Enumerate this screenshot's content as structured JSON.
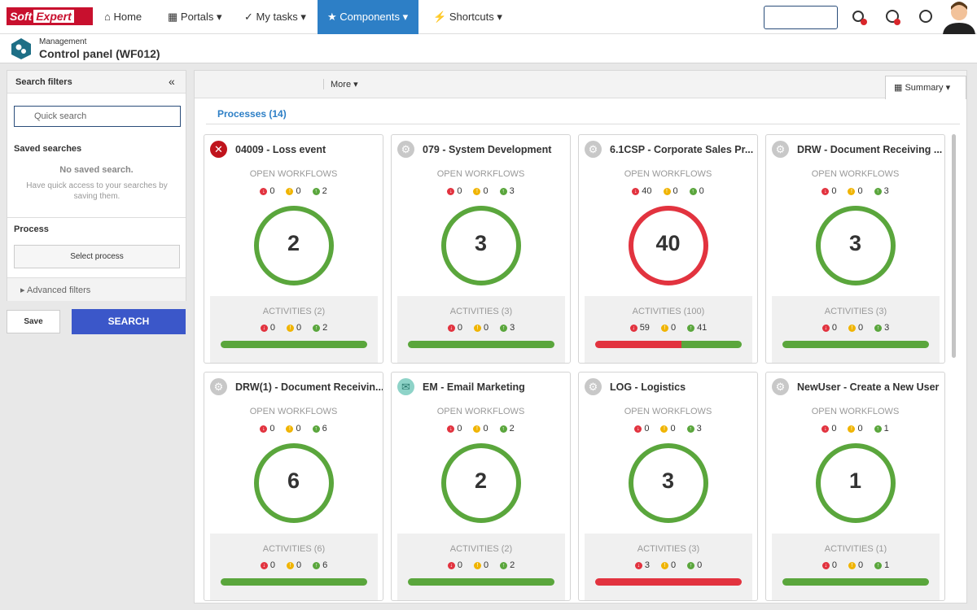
{
  "nav": {
    "logo_a": "Soft",
    "logo_b": "Expert",
    "items": [
      "Home",
      "Portals",
      "My tasks",
      "Components",
      "Shortcuts"
    ]
  },
  "header": {
    "breadcrumb": "Management",
    "title": "Control panel (WF012)"
  },
  "filters": {
    "title": "Search filters",
    "quick_search": "Quick search",
    "saved_searches": "Saved searches",
    "no_saved": "No saved search.",
    "no_saved_hint": "Have quick access to your searches by saving them.",
    "process": "Process",
    "select_process": "Select process",
    "advanced": "Advanced filters",
    "save": "Save",
    "search": "SEARCH"
  },
  "toolbar": {
    "more": "More",
    "summary": "Summary"
  },
  "processes": {
    "title": "Processes (14)",
    "open_workflows_label": "OPEN WORKFLOWS",
    "cards": [
      {
        "title": "04009 - Loss event",
        "icon": "error",
        "total": "2",
        "workflows": [
          0,
          0,
          2
        ],
        "activities_label": "ACTIVITIES (2)",
        "activities": [
          0,
          0,
          2
        ]
      },
      {
        "title": "079 - System Development",
        "icon": "gear",
        "total": "3",
        "workflows": [
          0,
          0,
          3
        ],
        "activities_label": "ACTIVITIES (3)",
        "activities": [
          0,
          0,
          3
        ]
      },
      {
        "title": "6.1CSP - Corporate Sales Pr...",
        "icon": "gear",
        "total": "40",
        "workflows": [
          40,
          0,
          0
        ],
        "activities_label": "ACTIVITIES (100)",
        "activities": [
          59,
          0,
          41
        ]
      },
      {
        "title": "DRW - Document Receiving ...",
        "icon": "gear",
        "total": "3",
        "workflows": [
          0,
          0,
          3
        ],
        "activities_label": "ACTIVITIES (3)",
        "activities": [
          0,
          0,
          3
        ]
      },
      {
        "title": "DRW(1) - Document Receivin...",
        "icon": "gear",
        "total": "6",
        "workflows": [
          0,
          0,
          6
        ],
        "activities_label": "ACTIVITIES (6)",
        "activities": [
          0,
          0,
          6
        ]
      },
      {
        "title": "EM - Email Marketing",
        "icon": "mail",
        "total": "2",
        "workflows": [
          0,
          0,
          2
        ],
        "activities_label": "ACTIVITIES (2)",
        "activities": [
          0,
          0,
          2
        ]
      },
      {
        "title": "LOG - Logistics",
        "icon": "gear",
        "total": "3",
        "workflows": [
          0,
          0,
          3
        ],
        "activities_label": "ACTIVITIES (3)",
        "activities": [
          3,
          0,
          0
        ]
      },
      {
        "title": "NewUser - Create a New User",
        "icon": "gear",
        "total": "1",
        "workflows": [
          0,
          0,
          1
        ],
        "activities_label": "ACTIVITIES (1)",
        "activities": [
          0,
          0,
          1
        ]
      }
    ]
  }
}
